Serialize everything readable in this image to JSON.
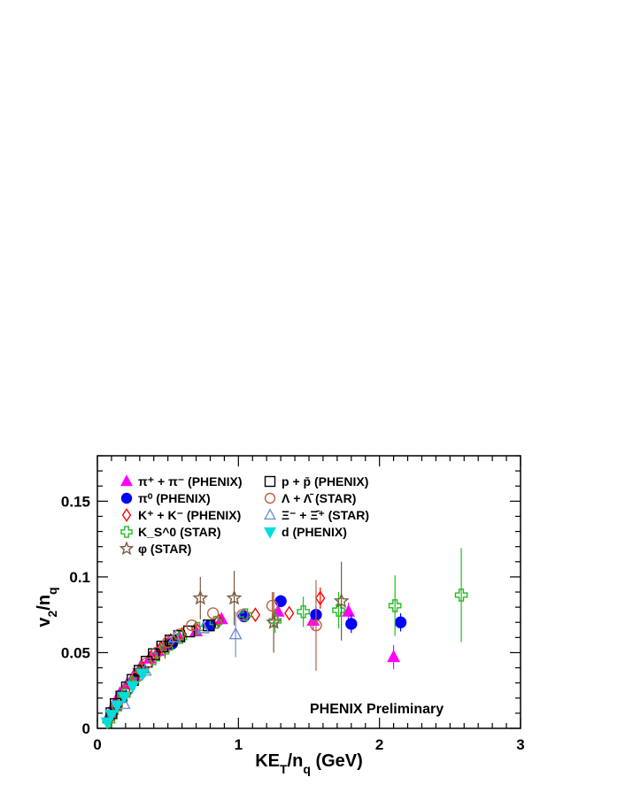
{
  "chart_data": {
    "type": "scatter",
    "title": "",
    "xlabel": "KE_T/n_q (GeV)",
    "ylabel": "v_2/n_q",
    "xlim": [
      0,
      3
    ],
    "ylim": [
      0,
      0.18
    ],
    "x_ticks": [
      "0",
      "1",
      "2",
      "3"
    ],
    "y_ticks": [
      "0",
      "0.05",
      "0.1",
      "0.15"
    ],
    "x_tick_values": [
      0,
      1,
      2,
      3
    ],
    "y_tick_values": [
      0,
      0.05,
      0.1,
      0.15
    ],
    "grid": false,
    "legend_position": "top-left",
    "annotation": "PHENIX Preliminary",
    "series": [
      {
        "name": "π⁺ + π⁻ (PHENIX)",
        "marker": "triangle-up",
        "filled": true,
        "color": "#ff00ff",
        "points": [
          {
            "x": 0.08,
            "y": 0.008
          },
          {
            "x": 0.12,
            "y": 0.016
          },
          {
            "x": 0.16,
            "y": 0.023
          },
          {
            "x": 0.21,
            "y": 0.029
          },
          {
            "x": 0.26,
            "y": 0.035
          },
          {
            "x": 0.31,
            "y": 0.041
          },
          {
            "x": 0.37,
            "y": 0.046
          },
          {
            "x": 0.43,
            "y": 0.051
          },
          {
            "x": 0.49,
            "y": 0.055
          },
          {
            "x": 0.58,
            "y": 0.06
          },
          {
            "x": 0.7,
            "y": 0.064
          },
          {
            "x": 0.88,
            "y": 0.072
          },
          {
            "x": 1.28,
            "y": 0.077,
            "err": 0.005
          },
          {
            "x": 1.53,
            "y": 0.071,
            "err": 0.006
          },
          {
            "x": 1.78,
            "y": 0.077,
            "err": 0.006
          },
          {
            "x": 2.1,
            "y": 0.047,
            "err": 0.008
          }
        ]
      },
      {
        "name": "π⁰ (PHENIX)",
        "marker": "circle",
        "filled": true,
        "color": "#0000ff",
        "points": [
          {
            "x": 0.53,
            "y": 0.056
          },
          {
            "x": 0.8,
            "y": 0.068
          },
          {
            "x": 1.04,
            "y": 0.074
          },
          {
            "x": 1.3,
            "y": 0.084,
            "err": 0.004
          },
          {
            "x": 1.55,
            "y": 0.075,
            "err": 0.005
          },
          {
            "x": 1.8,
            "y": 0.069,
            "err": 0.006
          },
          {
            "x": 2.15,
            "y": 0.07,
            "err": 0.006
          }
        ]
      },
      {
        "name": "K⁺ + K⁻ (PHENIX)",
        "marker": "diamond",
        "filled": false,
        "color": "#ff0000",
        "points": [
          {
            "x": 0.1,
            "y": 0.008
          },
          {
            "x": 0.15,
            "y": 0.017
          },
          {
            "x": 0.2,
            "y": 0.025
          },
          {
            "x": 0.26,
            "y": 0.033
          },
          {
            "x": 0.32,
            "y": 0.04
          },
          {
            "x": 0.38,
            "y": 0.047
          },
          {
            "x": 0.45,
            "y": 0.053
          },
          {
            "x": 0.52,
            "y": 0.058
          },
          {
            "x": 0.6,
            "y": 0.062
          },
          {
            "x": 0.7,
            "y": 0.066
          },
          {
            "x": 0.86,
            "y": 0.071
          },
          {
            "x": 1.12,
            "y": 0.075
          },
          {
            "x": 1.36,
            "y": 0.076
          },
          {
            "x": 1.58,
            "y": 0.086,
            "err": 0.007
          }
        ]
      },
      {
        "name": "K_S^0 (STAR)",
        "marker": "cross",
        "filled": false,
        "color": "#22bb22",
        "points": [
          {
            "x": 0.08,
            "y": 0.005
          },
          {
            "x": 0.13,
            "y": 0.013
          },
          {
            "x": 0.19,
            "y": 0.022
          },
          {
            "x": 0.25,
            "y": 0.03
          },
          {
            "x": 0.32,
            "y": 0.038
          },
          {
            "x": 0.4,
            "y": 0.046
          },
          {
            "x": 0.49,
            "y": 0.053
          },
          {
            "x": 0.59,
            "y": 0.06
          },
          {
            "x": 0.71,
            "y": 0.066
          },
          {
            "x": 0.84,
            "y": 0.07
          },
          {
            "x": 1.05,
            "y": 0.075
          },
          {
            "x": 1.26,
            "y": 0.071,
            "err": 0.008
          },
          {
            "x": 1.46,
            "y": 0.077,
            "err": 0.01
          },
          {
            "x": 1.71,
            "y": 0.078,
            "err": 0.012
          },
          {
            "x": 2.11,
            "y": 0.081,
            "err": 0.02
          },
          {
            "x": 2.58,
            "y": 0.088,
            "err": 0.031
          }
        ]
      },
      {
        "name": "φ (STAR)",
        "marker": "star",
        "filled": false,
        "color": "#7a5a40",
        "points": [
          {
            "x": 0.3,
            "y": 0.038,
            "err": 0.006
          },
          {
            "x": 0.48,
            "y": 0.054,
            "err": 0.008
          },
          {
            "x": 0.73,
            "y": 0.086,
            "err": 0.014
          },
          {
            "x": 0.97,
            "y": 0.086,
            "err": 0.018
          },
          {
            "x": 1.25,
            "y": 0.07,
            "err": 0.02
          },
          {
            "x": 1.73,
            "y": 0.084,
            "err": 0.026
          }
        ]
      },
      {
        "name": "p + p̄ (PHENIX)",
        "marker": "square",
        "filled": false,
        "color": "#000000",
        "points": [
          {
            "x": 0.1,
            "y": 0.01
          },
          {
            "x": 0.13,
            "y": 0.016
          },
          {
            "x": 0.17,
            "y": 0.021
          },
          {
            "x": 0.21,
            "y": 0.027
          },
          {
            "x": 0.25,
            "y": 0.032
          },
          {
            "x": 0.3,
            "y": 0.038
          },
          {
            "x": 0.35,
            "y": 0.044
          },
          {
            "x": 0.4,
            "y": 0.049
          },
          {
            "x": 0.46,
            "y": 0.054
          },
          {
            "x": 0.52,
            "y": 0.058
          },
          {
            "x": 0.58,
            "y": 0.061
          },
          {
            "x": 0.65,
            "y": 0.064
          },
          {
            "x": 0.79,
            "y": 0.068
          }
        ]
      },
      {
        "name": "Λ + Λ̄ (STAR)",
        "marker": "circle",
        "filled": false,
        "color": "#c06040",
        "points": [
          {
            "x": 0.14,
            "y": 0.015
          },
          {
            "x": 0.21,
            "y": 0.025
          },
          {
            "x": 0.28,
            "y": 0.034
          },
          {
            "x": 0.35,
            "y": 0.043
          },
          {
            "x": 0.42,
            "y": 0.05
          },
          {
            "x": 0.5,
            "y": 0.057
          },
          {
            "x": 0.58,
            "y": 0.062
          },
          {
            "x": 0.67,
            "y": 0.068
          },
          {
            "x": 0.82,
            "y": 0.076
          },
          {
            "x": 1.03,
            "y": 0.075
          },
          {
            "x": 1.24,
            "y": 0.081,
            "err": 0.009
          },
          {
            "x": 1.55,
            "y": 0.068,
            "err": 0.03
          }
        ]
      },
      {
        "name": "Ξ⁻ + Ξ̄⁺ (STAR)",
        "marker": "triangle-up",
        "filled": false,
        "color": "#7090d0",
        "points": [
          {
            "x": 0.19,
            "y": 0.016
          },
          {
            "x": 0.34,
            "y": 0.038
          },
          {
            "x": 0.55,
            "y": 0.06
          },
          {
            "x": 0.75,
            "y": 0.066
          },
          {
            "x": 0.98,
            "y": 0.062,
            "err": 0.015
          }
        ]
      },
      {
        "name": "d (PHENIX)",
        "marker": "triangle-down",
        "filled": true,
        "color": "#00dddd",
        "points": [
          {
            "x": 0.07,
            "y": 0.004
          },
          {
            "x": 0.1,
            "y": 0.009
          },
          {
            "x": 0.14,
            "y": 0.015
          },
          {
            "x": 0.19,
            "y": 0.021
          },
          {
            "x": 0.25,
            "y": 0.028
          },
          {
            "x": 0.32,
            "y": 0.036
          }
        ]
      }
    ]
  }
}
